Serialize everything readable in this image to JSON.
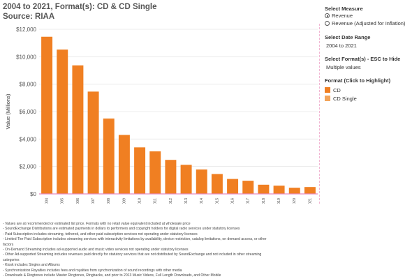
{
  "header": {
    "title": "2004 to 2021, Format(s): CD & CD Single",
    "subtitle": "Source: RIAA"
  },
  "controls": {
    "measure": {
      "label": "Select Measure",
      "options": [
        "Revenue",
        "Revenue (Adjusted for Inflation)"
      ],
      "selected": "Revenue"
    },
    "date_range": {
      "label": "Select Date Range",
      "value": "2004 to 2021"
    },
    "formats": {
      "label": "Select Format(s) - ESC to Hide",
      "value": "Multiple values"
    },
    "legend": {
      "label": "Format (Click to Highlight)",
      "items": [
        {
          "name": "CD",
          "color": "#f07f22"
        },
        {
          "name": "CD Single",
          "color": "#f3a45a"
        }
      ]
    }
  },
  "chart_data": {
    "type": "bar",
    "ylabel": "Value (Millions)",
    "xlabel": "",
    "categories": [
      "2004",
      "2005",
      "2006",
      "2007",
      "2008",
      "2009",
      "2010",
      "2011",
      "2012",
      "2013",
      "2014",
      "2015",
      "2016",
      "2017",
      "2018",
      "2019",
      "2020",
      "2021"
    ],
    "series": [
      {
        "name": "CD",
        "color": "#f07f22",
        "values": [
          11450,
          10520,
          9370,
          7450,
          5470,
          4280,
          3390,
          3100,
          2480,
          2120,
          1780,
          1450,
          1090,
          960,
          670,
          600,
          450,
          500
        ]
      },
      {
        "name": "CD Single",
        "color": "#f3a45a",
        "values": [
          15,
          10,
          7,
          12,
          35,
          34,
          3,
          6,
          3,
          2,
          2,
          1,
          1,
          1,
          1,
          1,
          1,
          1
        ]
      }
    ],
    "yticks": [
      "$0",
      "$2,000",
      "$4,000",
      "$6,000",
      "$8,000",
      "$10,000",
      "$12,000"
    ],
    "ylim": [
      0,
      12000
    ],
    "grid": true
  },
  "notes": [
    "- Values are at recommended or estimated list price. Formats with no retail value equivalent included at wholesale price",
    "- SoundExchange Distributions are estimated payments in dollars to performers and copyright holders for digital radio services under statutory licenses",
    "- Paid Subscription includes streaming, tethered, and other paid subscription services not operating under statutory licenses",
    "- Limited Tier Paid Subscription includes streaming services with interactivity limitations by availability, device restriction, catalog limitations, on demand access, or other factors",
    "- On-Demand Streaming includes ad-supported audio and music video services not operating under statutory licenses",
    "- Other Ad-supported Streaming includes revenues paid directly for statutory services that are not distributed by SoundExchange and not included in other streaming categories",
    "- Kiosk includes Singles and Albums",
    "- Synchronization Royalties includes fees and royalties from synchronization of sound recordings with other media",
    "- Downloads & Ringtones include Master Ringtones, Ringbacks, and prior to 2013 Music Videos, Full Length Downloads, and Other Mobile"
  ]
}
